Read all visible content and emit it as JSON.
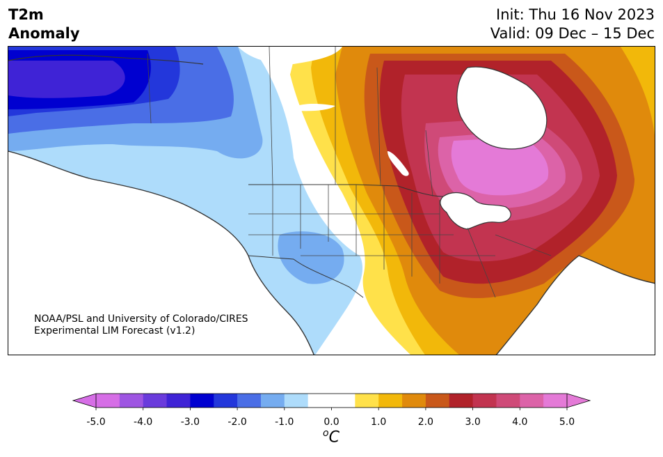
{
  "header": {
    "title_line1": "T2m",
    "title_line2": "Anomaly",
    "init": "Init: Thu 16 Nov 2023",
    "valid": "Valid: 09 Dec – 15 Dec"
  },
  "credit": {
    "line1": "NOAA/PSL and University of Colorado/CIRES",
    "line2": "Experimental LIM Forecast (v1.2)"
  },
  "colorbar": {
    "ticks": [
      "-5.0",
      "-4.0",
      "-3.0",
      "-2.0",
      "-1.0",
      "0.0",
      "1.0",
      "2.0",
      "3.0",
      "4.0",
      "5.0"
    ],
    "units": "oC",
    "colors": [
      "#d66ee6",
      "#9e55e2",
      "#6a3bdc",
      "#3f23d6",
      "#0000d0",
      "#2337db",
      "#4a6ee6",
      "#75acf0",
      "#aedcfb",
      "#ffffff",
      "#ffffff",
      "#ffe14a",
      "#f2b80a",
      "#e08a0c",
      "#c9581a",
      "#b1222a",
      "#c23450",
      "#cf4a78",
      "#dc63a8",
      "#e47ad7"
    ],
    "extend_low": "#d66ee6",
    "extend_high": "#e47ad7"
  },
  "map": {
    "region": "North America",
    "variable": "2-m temperature anomaly"
  }
}
